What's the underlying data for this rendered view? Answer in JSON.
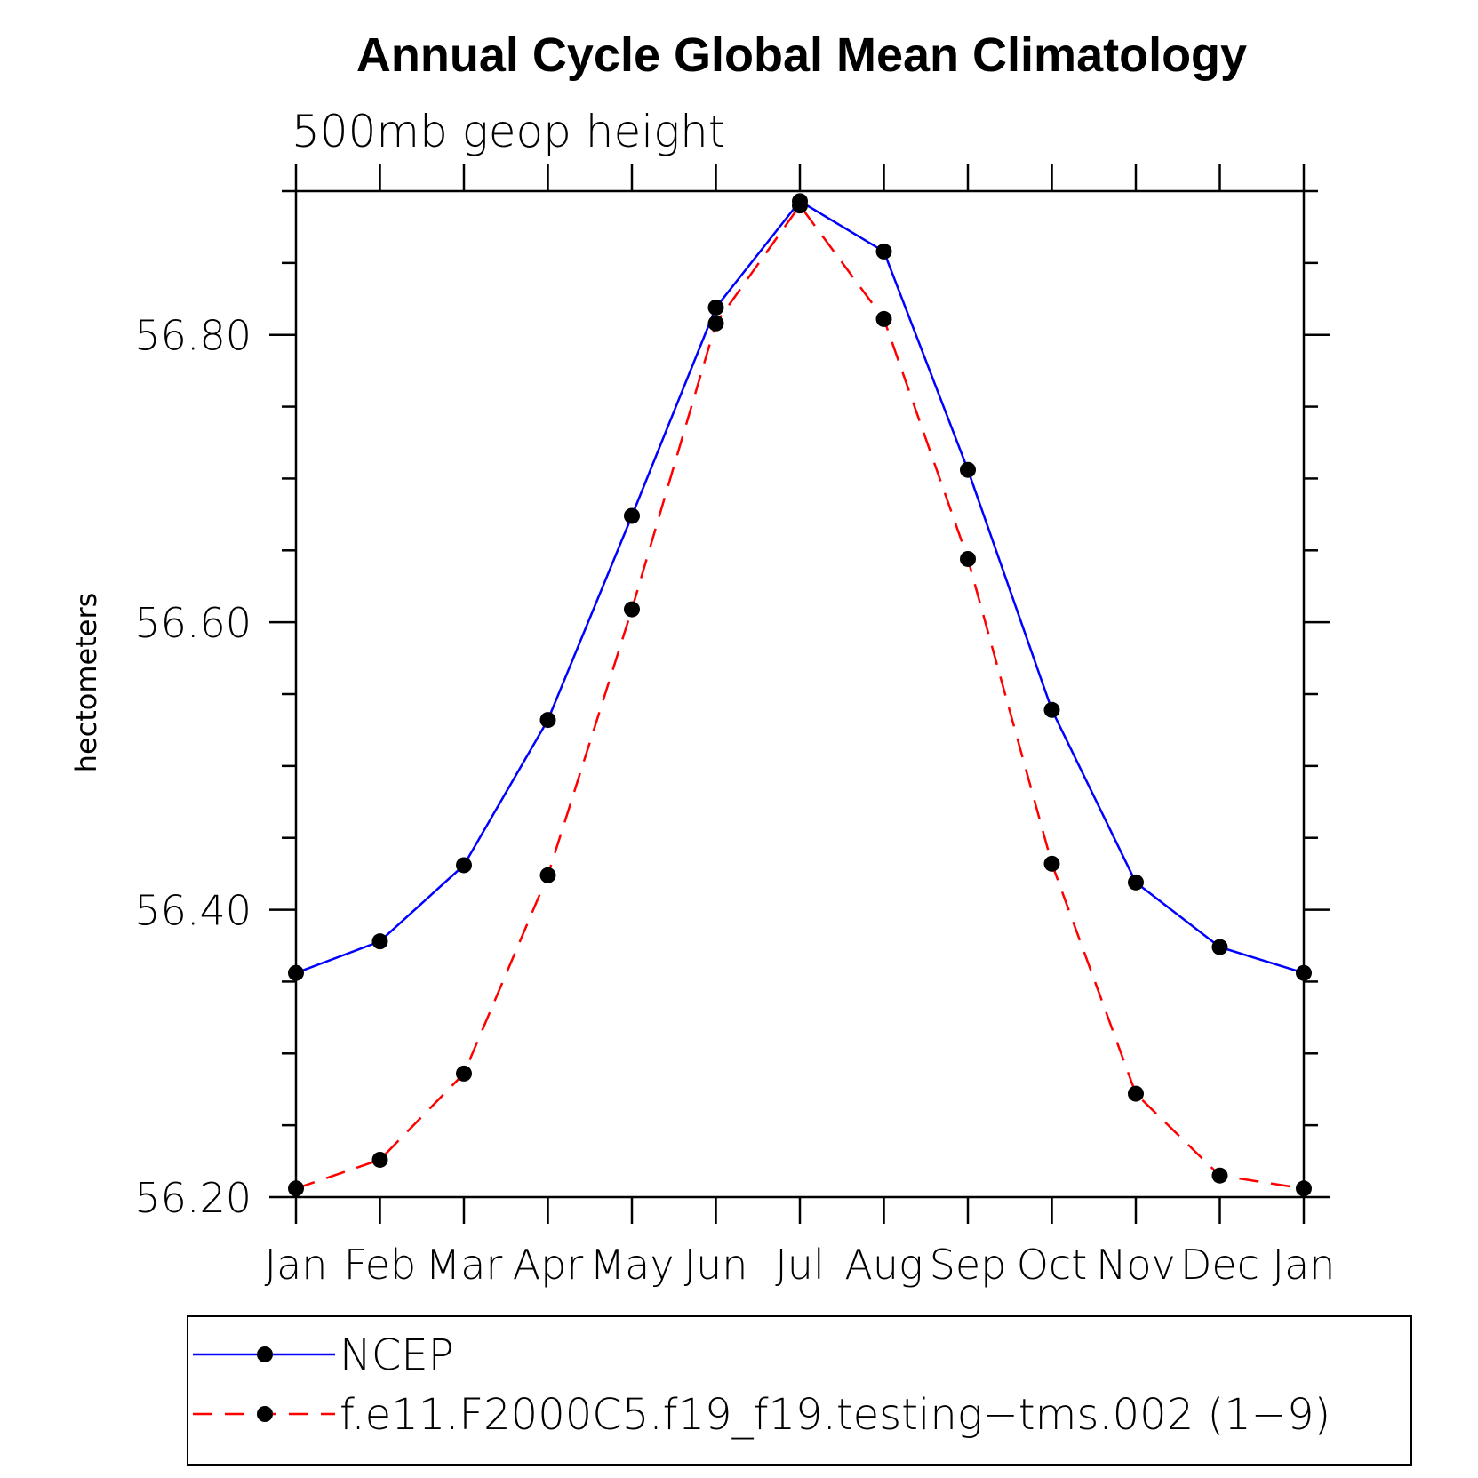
{
  "chart_data": {
    "type": "line",
    "title": "Annual Cycle Global Mean Climatology",
    "subtitle": "500mb geop height",
    "ylabel": "hectometers",
    "xlabel": "",
    "categories": [
      "Jan",
      "Feb",
      "Mar",
      "Apr",
      "May",
      "Jun",
      "Jul",
      "Aug",
      "Sep",
      "Oct",
      "Nov",
      "Dec",
      "Jan"
    ],
    "ylim": [
      56.2,
      56.9
    ],
    "y_major_ticks": [
      "56.20",
      "56.40",
      "56.60",
      "56.80"
    ],
    "y_minor_step": 0.05,
    "grid": false,
    "legend_position": "bottom",
    "series": [
      {
        "name": "NCEP",
        "color": "#0000ff",
        "dash": "solid",
        "marker": "filled-circle",
        "values": [
          56.356,
          56.378,
          56.431,
          56.532,
          56.674,
          56.819,
          56.893,
          56.858,
          56.706,
          56.539,
          56.419,
          56.374,
          56.356
        ]
      },
      {
        "name": "f.e11.F2000C5.f19_f19.testing−tms.002 (1−9)",
        "color": "#ff0000",
        "dash": "dashed",
        "marker": "filled-circle",
        "values": [
          56.206,
          56.226,
          56.286,
          56.424,
          56.609,
          56.808,
          56.89,
          56.811,
          56.644,
          56.432,
          56.272,
          56.215,
          56.206
        ]
      }
    ]
  }
}
